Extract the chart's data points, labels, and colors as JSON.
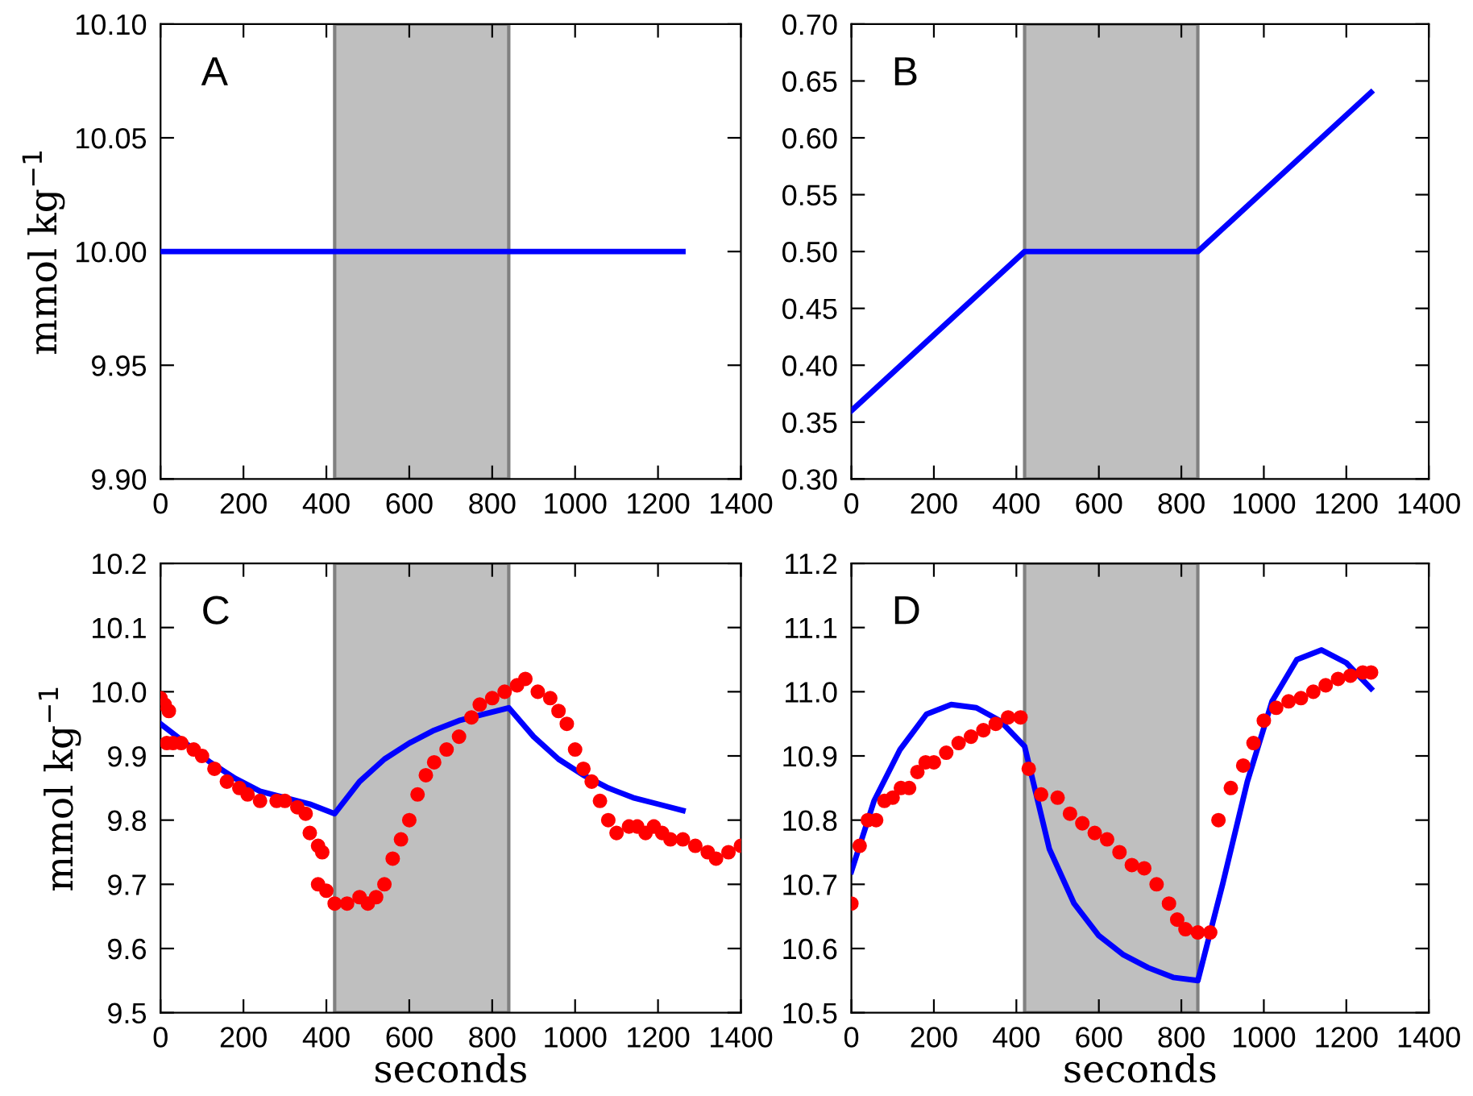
{
  "chart_data": [
    {
      "type": "line",
      "annotations": [
        "A"
      ],
      "ylabel": "mmol kg$^{−1}$",
      "xlim": [
        0,
        1400
      ],
      "xticks": [
        0,
        200,
        400,
        600,
        800,
        1000,
        1200,
        1400
      ],
      "ylim": [
        9.9,
        10.1
      ],
      "yticks": [
        {
          "value": 9.9,
          "label": "9.90"
        },
        9.95,
        {
          "value": 10.0,
          "label": "10.00"
        },
        10.05,
        {
          "value": 10.1,
          "label": "10.10"
        }
      ],
      "grid": false,
      "legend": false,
      "bands": [
        {
          "axis": "x",
          "from": 420,
          "to": 840,
          "color": "#bfbfbf"
        }
      ],
      "series": [
        {
          "type": "line",
          "color": "#0000ff",
          "marker": "none",
          "x": [
            0,
            1260
          ],
          "values": [
            10.0,
            10.0
          ]
        }
      ]
    },
    {
      "type": "line",
      "annotations": [
        "B"
      ],
      "xlim": [
        0,
        1400
      ],
      "xticks": [
        0,
        200,
        400,
        600,
        800,
        1000,
        1200,
        1400
      ],
      "ylim": [
        0.3,
        0.7
      ],
      "yticks": [
        {
          "value": 0.3,
          "label": "0.30"
        },
        0.35,
        {
          "value": 0.4,
          "label": "0.40"
        },
        0.45,
        {
          "value": 0.5,
          "label": "0.50"
        },
        0.55,
        {
          "value": 0.6,
          "label": "0.60"
        },
        0.65,
        {
          "value": 0.7,
          "label": "0.70"
        }
      ],
      "grid": false,
      "legend": false,
      "bands": [
        {
          "axis": "x",
          "from": 420,
          "to": 840,
          "color": "#bfbfbf"
        }
      ],
      "series": [
        {
          "type": "line",
          "color": "#0000ff",
          "marker": "none",
          "x": [
            0,
            420,
            840,
            1260
          ],
          "values": [
            0.36,
            0.5,
            0.5,
            0.64
          ]
        }
      ]
    },
    {
      "type": "line",
      "annotations": [
        "C"
      ],
      "xlabel": "seconds",
      "ylabel": "mmol kg$^{−1}$",
      "xlim": [
        0,
        1400
      ],
      "xticks": [
        0,
        200,
        400,
        600,
        800,
        1000,
        1200,
        1400
      ],
      "ylim": [
        9.5,
        10.2
      ],
      "yticks": [
        9.5,
        9.6,
        9.7,
        9.8,
        9.9,
        {
          "value": 10.0,
          "label": "10.0"
        },
        10.1,
        10.2
      ],
      "grid": false,
      "legend": false,
      "bands": [
        {
          "axis": "x",
          "from": 420,
          "to": 840,
          "color": "#bfbfbf"
        }
      ],
      "series": [
        {
          "type": "line",
          "color": "#0000ff",
          "marker": "none",
          "x": [
            0,
            60,
            120,
            180,
            240,
            300,
            360,
            420,
            480,
            540,
            600,
            660,
            720,
            780,
            840,
            900,
            960,
            1020,
            1080,
            1140,
            1200,
            1260
          ],
          "values": [
            9.95,
            9.92,
            9.89,
            9.865,
            9.845,
            9.835,
            9.825,
            9.81,
            9.86,
            9.895,
            9.92,
            9.94,
            9.955,
            9.965,
            9.975,
            9.93,
            9.895,
            9.87,
            9.85,
            9.835,
            9.825,
            9.815
          ]
        },
        {
          "type": "scatter",
          "color": "#ff0000",
          "marker": "circle",
          "x": [
            0,
            10,
            20,
            15,
            30,
            50,
            80,
            100,
            130,
            160,
            190,
            210,
            240,
            280,
            300,
            330,
            350,
            360,
            380,
            390,
            380,
            400,
            420,
            450,
            480,
            500,
            520,
            540,
            560,
            580,
            600,
            620,
            640,
            660,
            690,
            720,
            750,
            770,
            800,
            830,
            860,
            880,
            910,
            940,
            960,
            980,
            1000,
            1020,
            1040,
            1060,
            1080,
            1100,
            1130,
            1150,
            1170,
            1190,
            1210,
            1230,
            1260,
            1290,
            1320,
            1340,
            1370,
            1400
          ],
          "values": [
            9.99,
            9.98,
            9.97,
            9.92,
            9.92,
            9.92,
            9.91,
            9.9,
            9.88,
            9.86,
            9.85,
            9.84,
            9.83,
            9.83,
            9.83,
            9.82,
            9.81,
            9.78,
            9.76,
            9.75,
            9.7,
            9.69,
            9.67,
            9.67,
            9.68,
            9.67,
            9.68,
            9.7,
            9.74,
            9.77,
            9.8,
            9.84,
            9.87,
            9.89,
            9.91,
            9.93,
            9.96,
            9.98,
            9.99,
            10.0,
            10.01,
            10.02,
            10.0,
            9.99,
            9.97,
            9.95,
            9.91,
            9.88,
            9.86,
            9.83,
            9.8,
            9.78,
            9.79,
            9.79,
            9.78,
            9.79,
            9.78,
            9.77,
            9.77,
            9.76,
            9.75,
            9.74,
            9.75,
            9.76
          ]
        }
      ]
    },
    {
      "type": "line",
      "annotations": [
        "D"
      ],
      "xlabel": "seconds",
      "xlim": [
        0,
        1400
      ],
      "xticks": [
        0,
        200,
        400,
        600,
        800,
        1000,
        1200,
        1400
      ],
      "ylim": [
        10.5,
        11.2
      ],
      "yticks": [
        10.5,
        10.6,
        10.7,
        10.8,
        10.9,
        {
          "value": 11.0,
          "label": "11.0"
        },
        11.1,
        11.2
      ],
      "grid": false,
      "legend": false,
      "bands": [
        {
          "axis": "x",
          "from": 420,
          "to": 840,
          "color": "#bfbfbf"
        }
      ],
      "series": [
        {
          "type": "line",
          "color": "#0000ff",
          "marker": "none",
          "x": [
            0,
            55,
            118,
            182,
            242,
            303,
            360,
            420,
            480,
            540,
            600,
            660,
            720,
            780,
            840,
            900,
            960,
            1020,
            1080,
            1140,
            1200,
            1260
          ],
          "values": [
            10.72,
            10.83,
            10.91,
            10.965,
            10.98,
            10.975,
            10.955,
            10.915,
            10.755,
            10.67,
            10.62,
            10.59,
            10.57,
            10.555,
            10.55,
            10.7,
            10.86,
            10.985,
            11.05,
            11.065,
            11.045,
            11.005
          ]
        },
        {
          "type": "scatter",
          "color": "#ff0000",
          "marker": "circle",
          "x": [
            0,
            20,
            40,
            60,
            80,
            100,
            120,
            140,
            160,
            180,
            200,
            230,
            260,
            290,
            320,
            350,
            380,
            410,
            430,
            460,
            500,
            530,
            560,
            590,
            620,
            650,
            680,
            710,
            740,
            770,
            790,
            810,
            840,
            870,
            890,
            920,
            950,
            975,
            1000,
            1030,
            1060,
            1090,
            1120,
            1150,
            1180,
            1210,
            1240,
            1260
          ],
          "values": [
            10.67,
            10.76,
            10.8,
            10.8,
            10.83,
            10.835,
            10.85,
            10.85,
            10.875,
            10.89,
            10.89,
            10.905,
            10.92,
            10.93,
            10.94,
            10.95,
            10.96,
            10.96,
            10.88,
            10.84,
            10.835,
            10.81,
            10.795,
            10.78,
            10.77,
            10.75,
            10.73,
            10.725,
            10.7,
            10.67,
            10.645,
            10.63,
            10.625,
            10.625,
            10.8,
            10.85,
            10.885,
            10.92,
            10.955,
            10.975,
            10.985,
            10.99,
            11.0,
            11.01,
            11.02,
            11.025,
            11.03,
            11.03
          ]
        }
      ]
    }
  ]
}
